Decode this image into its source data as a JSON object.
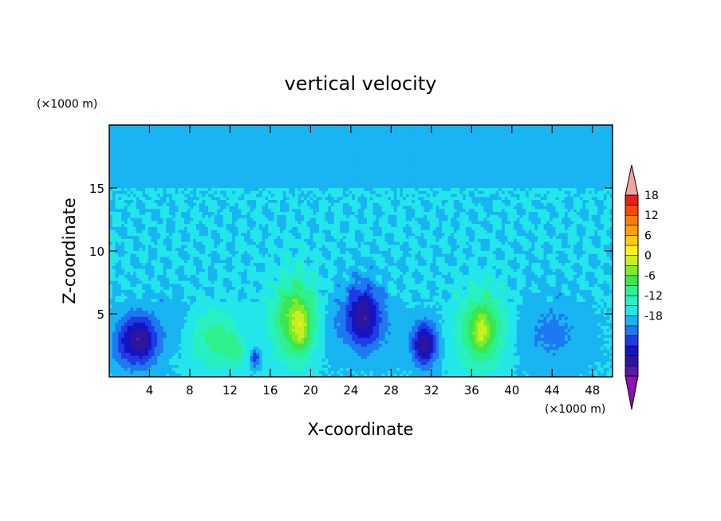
{
  "chart_data": {
    "type": "heatmap",
    "title": "vertical velocity",
    "xlabel": "X-coordinate",
    "ylabel": "Z-coordinate",
    "x_unit": "(×1000 m)",
    "y_unit": "(×1000 m)",
    "xlim": [
      0,
      50
    ],
    "ylim": [
      0,
      20
    ],
    "x_ticks": [
      "4",
      "8",
      "12",
      "16",
      "20",
      "24",
      "28",
      "32",
      "36",
      "40",
      "44",
      "48"
    ],
    "y_ticks": [
      "5",
      "10",
      "15"
    ],
    "colorbar": {
      "min": -21,
      "max": 21,
      "interval": 3,
      "tick_labels": [
        "18",
        "12",
        "6",
        "0",
        "-6",
        "-12",
        "-18"
      ],
      "colors": [
        "#8b12b5",
        "#5a18a8",
        "#2c169e",
        "#1414c0",
        "#1e3ce6",
        "#1e78f0",
        "#19b4f2",
        "#23e6ea",
        "#28f0c0",
        "#2ef08c",
        "#3ce64e",
        "#82ea28",
        "#c8f01e",
        "#fff01e",
        "#ffc814",
        "#ffa00a",
        "#ff7a0a",
        "#ff460a",
        "#eb1c1c",
        "#f2a4a4"
      ]
    },
    "field": {
      "background": 0.2,
      "cells": [
        {
          "x": 3,
          "z": 2.9,
          "sx": 1.8,
          "sz": 2.0,
          "w": -15
        },
        {
          "x": 10.5,
          "z": 3.0,
          "sx": 2.5,
          "sz": 2.3,
          "w": 7
        },
        {
          "x": 12.5,
          "z": 2.0,
          "sx": 1.0,
          "sz": 1.2,
          "w": 5
        },
        {
          "x": 14.5,
          "z": 1.5,
          "sx": 0.45,
          "sz": 0.7,
          "w": -9
        },
        {
          "x": 18.5,
          "z": 4.6,
          "sx": 2.3,
          "sz": 3.2,
          "w": 13
        },
        {
          "x": 19.0,
          "z": 3.8,
          "sx": 0.8,
          "sz": 1.6,
          "w": 6
        },
        {
          "x": 25.2,
          "z": 4.8,
          "sx": 1.7,
          "sz": 2.5,
          "w": -15
        },
        {
          "x": 31.3,
          "z": 2.6,
          "sx": 1.2,
          "sz": 1.7,
          "w": -15
        },
        {
          "x": 37.0,
          "z": 3.8,
          "sx": 2.3,
          "sz": 3.0,
          "w": 12
        },
        {
          "x": 37.0,
          "z": 3.5,
          "sx": 0.7,
          "sz": 1.4,
          "w": 5
        },
        {
          "x": 44.0,
          "z": 3.5,
          "sx": 3.5,
          "sz": 3.0,
          "w": -4
        },
        {
          "x": 22.0,
          "z": 4.0,
          "sx": 1.5,
          "sz": 3.0,
          "w": -3
        },
        {
          "x": 6.5,
          "z": 4.5,
          "sx": 1.5,
          "sz": 2.5,
          "w": -2
        },
        {
          "x": 1.0,
          "z": 2.5,
          "sx": 1.0,
          "sz": 2.0,
          "w": -3
        },
        {
          "x": 28.0,
          "z": 3.5,
          "sx": 1.5,
          "sz": 2.5,
          "w": -2
        }
      ]
    }
  }
}
